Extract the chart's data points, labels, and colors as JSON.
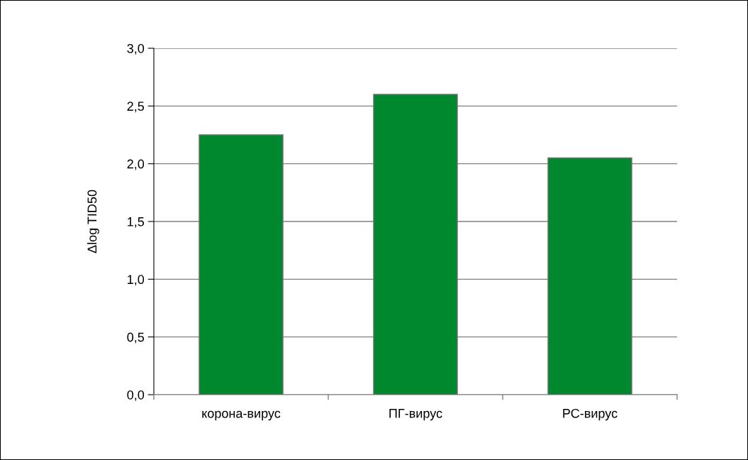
{
  "chart_data": {
    "type": "bar",
    "ylabel": "Δlog TID50",
    "categories": [
      "корона-вирус",
      "ПГ-вирус",
      "РС-вирус"
    ],
    "values": [
      2.25,
      2.6,
      2.05
    ],
    "color": "#00882f",
    "ylim": [
      0,
      3
    ],
    "yticks": [
      {
        "value": 0,
        "label": "0,0"
      },
      {
        "value": 0.5,
        "label": "0,5"
      },
      {
        "value": 1,
        "label": "1,0"
      },
      {
        "value": 1.5,
        "label": "1,5"
      },
      {
        "value": 2,
        "label": "2,0"
      },
      {
        "value": 2.5,
        "label": "2,5"
      },
      {
        "value": 3,
        "label": "3,0"
      }
    ],
    "grid": "y",
    "legend": false
  }
}
